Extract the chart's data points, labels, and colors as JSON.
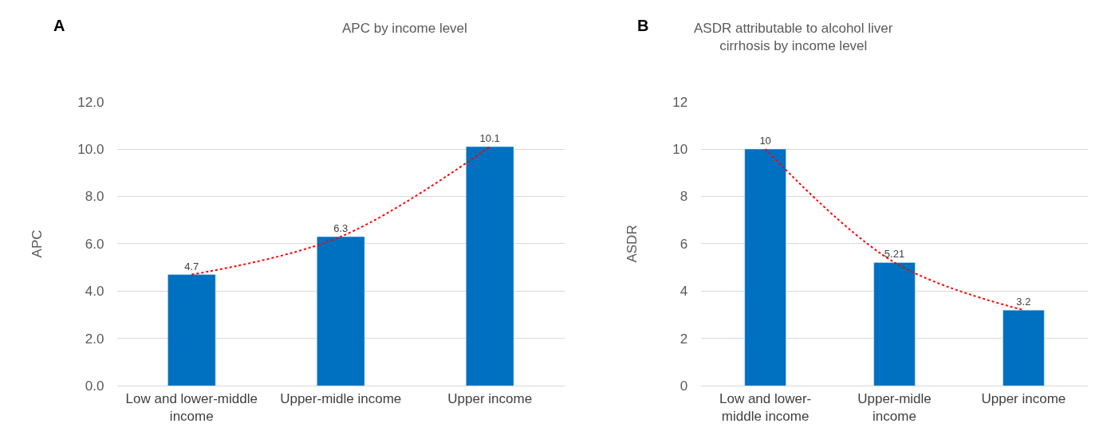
{
  "chart_data": [
    {
      "type": "bar",
      "title": "APC by income level",
      "ylabel": "APC",
      "annotations": [
        "A"
      ],
      "categories": [
        "Low and lower-middle income",
        "Upper-midle income",
        "Upper income"
      ],
      "series": [
        {
          "color": "#0070c0",
          "values": [
            4.7,
            6.3,
            10.1
          ],
          "value_labels": [
            "4.7",
            "6.3",
            "10.1"
          ]
        },
        {
          "type": "line",
          "color": "#ff0000",
          "line_style": "dotted",
          "values": [
            4.7,
            6.3,
            10.1
          ]
        }
      ],
      "ylim": [
        0,
        12
      ],
      "yticks": [
        {
          "value": 0,
          "label": "0.0"
        },
        {
          "value": 2,
          "label": "2.0"
        },
        {
          "value": 4,
          "label": "4.0"
        },
        {
          "value": 6,
          "label": "6.0"
        },
        {
          "value": 8,
          "label": "8.0"
        },
        {
          "value": 10,
          "label": "10.0"
        },
        {
          "value": 12,
          "label": "12.0"
        }
      ],
      "grid": "y"
    },
    {
      "type": "bar",
      "title": "ASDR attributable to alcohol liver cirrhosis by income level",
      "ylabel": "ASDR",
      "annotations": [
        "B"
      ],
      "categories": [
        "Low and lower-middle income",
        "Upper-midle income",
        "Upper income"
      ],
      "series": [
        {
          "color": "#0070c0",
          "values": [
            10,
            5.21,
            3.2
          ],
          "value_labels": [
            "10",
            "5.21",
            "3.2"
          ]
        },
        {
          "type": "line",
          "color": "#ff0000",
          "line_style": "dotted",
          "values": [
            10,
            5.21,
            3.2
          ]
        }
      ],
      "ylim": [
        0,
        12
      ],
      "yticks": [
        0,
        2,
        4,
        6,
        8,
        10,
        12
      ],
      "grid": "y"
    }
  ]
}
